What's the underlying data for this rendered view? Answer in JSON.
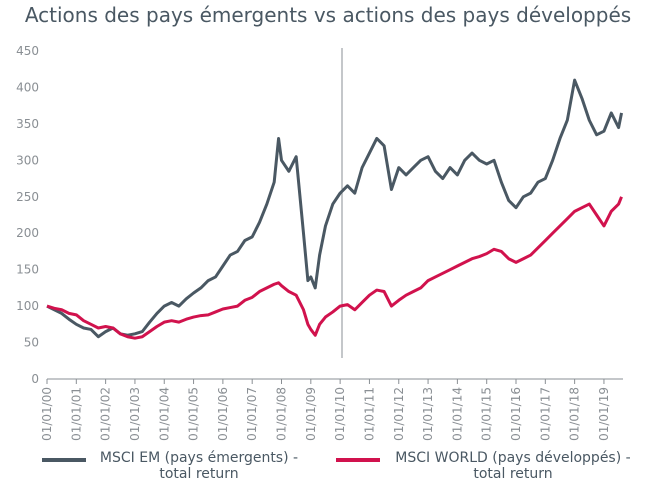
{
  "chart_data": {
    "type": "line",
    "title": "Actions des pays émergents vs actions des pays développés",
    "x": [
      2000,
      2000.25,
      2000.5,
      2000.75,
      2001,
      2001.25,
      2001.5,
      2001.75,
      2002,
      2002.25,
      2002.5,
      2002.75,
      2003,
      2003.25,
      2003.5,
      2003.75,
      2004,
      2004.25,
      2004.5,
      2004.75,
      2005,
      2005.25,
      2005.5,
      2005.75,
      2006,
      2006.25,
      2006.5,
      2006.75,
      2007,
      2007.25,
      2007.5,
      2007.75,
      2007.9,
      2008,
      2008.25,
      2008.5,
      2008.75,
      2008.9,
      2009,
      2009.15,
      2009.3,
      2009.5,
      2009.75,
      2010,
      2010.25,
      2010.5,
      2010.75,
      2011,
      2011.25,
      2011.5,
      2011.75,
      2012,
      2012.25,
      2012.5,
      2012.75,
      2013,
      2013.25,
      2013.5,
      2013.75,
      2014,
      2014.25,
      2014.5,
      2014.75,
      2015,
      2015.25,
      2015.5,
      2015.75,
      2016,
      2016.25,
      2016.5,
      2016.75,
      2017,
      2017.25,
      2017.5,
      2017.75,
      2018,
      2018.25,
      2018.5,
      2018.75,
      2019,
      2019.25,
      2019.5,
      2019.6
    ],
    "series": [
      {
        "name": "MSCI EM (pays émergents) - total return",
        "color": "#4a5863",
        "values": [
          100,
          95,
          90,
          82,
          75,
          70,
          68,
          58,
          65,
          70,
          62,
          60,
          62,
          65,
          78,
          90,
          100,
          105,
          100,
          110,
          118,
          125,
          135,
          140,
          155,
          170,
          175,
          190,
          195,
          215,
          240,
          270,
          330,
          300,
          285,
          305,
          200,
          135,
          140,
          125,
          170,
          210,
          240,
          255,
          265,
          255,
          290,
          310,
          330,
          320,
          260,
          290,
          280,
          290,
          300,
          305,
          285,
          275,
          290,
          280,
          300,
          310,
          300,
          295,
          300,
          270,
          245,
          235,
          250,
          255,
          270,
          275,
          300,
          330,
          355,
          410,
          385,
          355,
          335,
          340,
          365,
          345,
          365
        ]
      },
      {
        "name": "MSCI WORLD (pays développés) - total return",
        "color": "#d1124d",
        "values": [
          100,
          97,
          95,
          90,
          88,
          80,
          75,
          70,
          72,
          70,
          62,
          58,
          56,
          58,
          65,
          72,
          78,
          80,
          78,
          82,
          85,
          87,
          88,
          92,
          96,
          98,
          100,
          108,
          112,
          120,
          125,
          130,
          132,
          128,
          120,
          115,
          95,
          75,
          68,
          60,
          75,
          85,
          92,
          100,
          102,
          95,
          105,
          115,
          122,
          120,
          100,
          108,
          115,
          120,
          125,
          135,
          140,
          145,
          150,
          155,
          160,
          165,
          168,
          172,
          178,
          175,
          165,
          160,
          165,
          170,
          180,
          190,
          200,
          210,
          220,
          230,
          235,
          240,
          225,
          210,
          230,
          240,
          250
        ]
      }
    ],
    "xlim": [
      2000,
      2019.65
    ],
    "xticks": [
      {
        "value": 2000,
        "label": "01/01/00"
      },
      {
        "value": 2001,
        "label": "01/01/01"
      },
      {
        "value": 2002,
        "label": "01/01/02"
      },
      {
        "value": 2003,
        "label": "01/01/03"
      },
      {
        "value": 2004,
        "label": "01/01/04"
      },
      {
        "value": 2005,
        "label": "01/01/05"
      },
      {
        "value": 2006,
        "label": "01/01/06"
      },
      {
        "value": 2007,
        "label": "01/01/07"
      },
      {
        "value": 2008,
        "label": "01/01/08"
      },
      {
        "value": 2009,
        "label": "01/01/09"
      },
      {
        "value": 2010,
        "label": "01/01/10"
      },
      {
        "value": 2011,
        "label": "01/01/11"
      },
      {
        "value": 2012,
        "label": "01/01/12"
      },
      {
        "value": 2013,
        "label": "01/01/13"
      },
      {
        "value": 2014,
        "label": "01/01/14"
      },
      {
        "value": 2015,
        "label": "01/01/15"
      },
      {
        "value": 2016,
        "label": "01/01/16"
      },
      {
        "value": 2017,
        "label": "01/01/17"
      },
      {
        "value": 2018,
        "label": "01/01/18"
      },
      {
        "value": 2019,
        "label": "01/01/19"
      }
    ],
    "ylim": [
      0,
      450
    ],
    "yticks": [
      0,
      50,
      100,
      150,
      200,
      250,
      300,
      350,
      400,
      450
    ]
  }
}
